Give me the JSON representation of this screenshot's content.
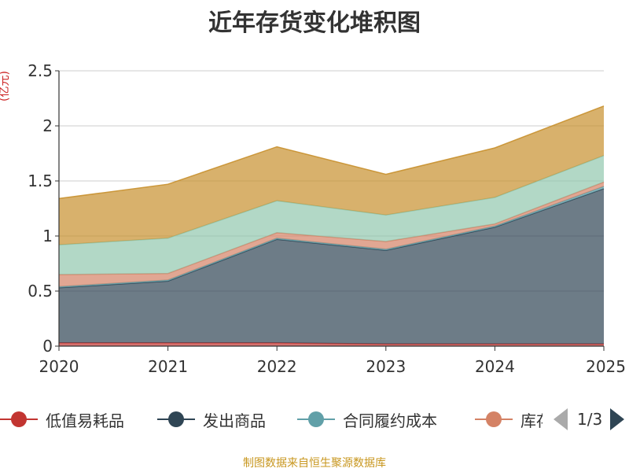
{
  "chart_data": {
    "type": "area",
    "stacked": true,
    "title": "近年存货变化堆积图",
    "unit_label": "(亿元)",
    "x": [
      "2020",
      "2021",
      "2022",
      "2023",
      "2024",
      "2025"
    ],
    "ylim": [
      0,
      2.5
    ],
    "yticks": [
      "0",
      "0.5",
      "1",
      "1.5",
      "2",
      "2.5"
    ],
    "grid": true,
    "legend_position": "bottom",
    "series": [
      {
        "name": "低值易耗品",
        "color": "#c23531",
        "values": [
          0.03,
          0.03,
          0.03,
          0.02,
          0.02,
          0.02
        ]
      },
      {
        "name": "发出商品",
        "color": "#2f4554",
        "values": [
          0.5,
          0.56,
          0.94,
          0.85,
          1.06,
          1.41
        ]
      },
      {
        "name": "合同履约成本",
        "color": "#61a0a8",
        "values": [
          0.01,
          0.01,
          0.01,
          0.01,
          0.01,
          0.02
        ]
      },
      {
        "name": "库存商品",
        "color": "#d48265",
        "values": [
          0.11,
          0.06,
          0.05,
          0.07,
          0.02,
          0.04
        ]
      },
      {
        "name": "",
        "color": "#91c7ae",
        "values": [
          0.27,
          0.32,
          0.29,
          0.24,
          0.24,
          0.24
        ]
      },
      {
        "name": "",
        "color": "#c8902e",
        "values": [
          0.42,
          0.49,
          0.49,
          0.37,
          0.45,
          0.45
        ]
      }
    ]
  },
  "legend": {
    "items": [
      "低值易耗品",
      "发出商品",
      "合同履约成本",
      "库存商品"
    ],
    "page_label": "1/3"
  },
  "source_note": "制图数据来自恒生聚源数据库"
}
